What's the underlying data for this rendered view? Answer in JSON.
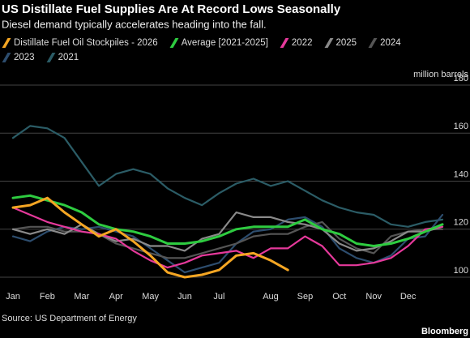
{
  "chart_data": {
    "type": "line",
    "title": "US Distillate Fuel Supplies Are At Record Lows Seasonally",
    "subtitle": "Diesel demand typically accelerates heading into the fall.",
    "y_label": "million barrels",
    "source": "Source: US Department of Energy",
    "credit": "Bloomberg",
    "categories": [
      "Jan",
      null,
      "Feb",
      null,
      "Mar",
      null,
      "Apr",
      null,
      "May",
      null,
      "Jun",
      null,
      "Jul",
      null,
      null,
      "Aug",
      null,
      "Sep",
      null,
      "Oct",
      null,
      "Nov",
      null,
      "Dec",
      null,
      null
    ],
    "ylim": [
      100,
      180
    ],
    "yticks": [
      100,
      120,
      140,
      160,
      180
    ],
    "grid": true,
    "series": [
      {
        "name": "Distillate Fuel Oil Stockpiles - 2026",
        "color": "#f5a623",
        "values": [
          129,
          130,
          133,
          127,
          122,
          117,
          120,
          115,
          109,
          102,
          100,
          101,
          103,
          109,
          110,
          107,
          103,
          null,
          null,
          null,
          null,
          null,
          null,
          null,
          null,
          null
        ]
      },
      {
        "name": "Average [2021-2025]",
        "color": "#2ecc40",
        "values": [
          133,
          134,
          132,
          130,
          127,
          122,
          120,
          119,
          117,
          114,
          114,
          115,
          117,
          120,
          121,
          121,
          121,
          124,
          120,
          118,
          114,
          113,
          114,
          116,
          119,
          122
        ]
      },
      {
        "name": "2022",
        "color": "#e6399b",
        "values": [
          129,
          126,
          123,
          121,
          119,
          118,
          116,
          111,
          107,
          104,
          106,
          109,
          110,
          111,
          108,
          112,
          112,
          117,
          113,
          105,
          105,
          106,
          108,
          113,
          120,
          121
        ]
      },
      {
        "name": "2025",
        "color": "#8a8a8a",
        "values": [
          120,
          118,
          120,
          118,
          122,
          118,
          115,
          116,
          113,
          113,
          111,
          116,
          118,
          127,
          125,
          125,
          123,
          122,
          120,
          114,
          111,
          112,
          115,
          119,
          119,
          121
        ]
      },
      {
        "name": "2024",
        "color": "#555555",
        "values": [
          120,
          121,
          121,
          119,
          119,
          118,
          114,
          112,
          110,
          108,
          108,
          110,
          112,
          114,
          117,
          118,
          118,
          121,
          123,
          116,
          112,
          110,
          117,
          119,
          120,
          120
        ]
      },
      {
        "name": "2023",
        "color": "#2d4d6e",
        "values": [
          117,
          115,
          119,
          121,
          120,
          121,
          119,
          117,
          112,
          107,
          102,
          104,
          106,
          114,
          119,
          120,
          124,
          125,
          121,
          112,
          108,
          106,
          109,
          116,
          117,
          126
        ]
      },
      {
        "name": "2021",
        "color": "#2b5c66",
        "values": [
          158,
          163,
          162,
          158,
          148,
          138,
          143,
          145,
          143,
          137,
          133,
          130,
          135,
          139,
          141,
          138,
          140,
          136,
          132,
          129,
          127,
          126,
          122,
          121,
          123,
          124
        ]
      }
    ]
  }
}
